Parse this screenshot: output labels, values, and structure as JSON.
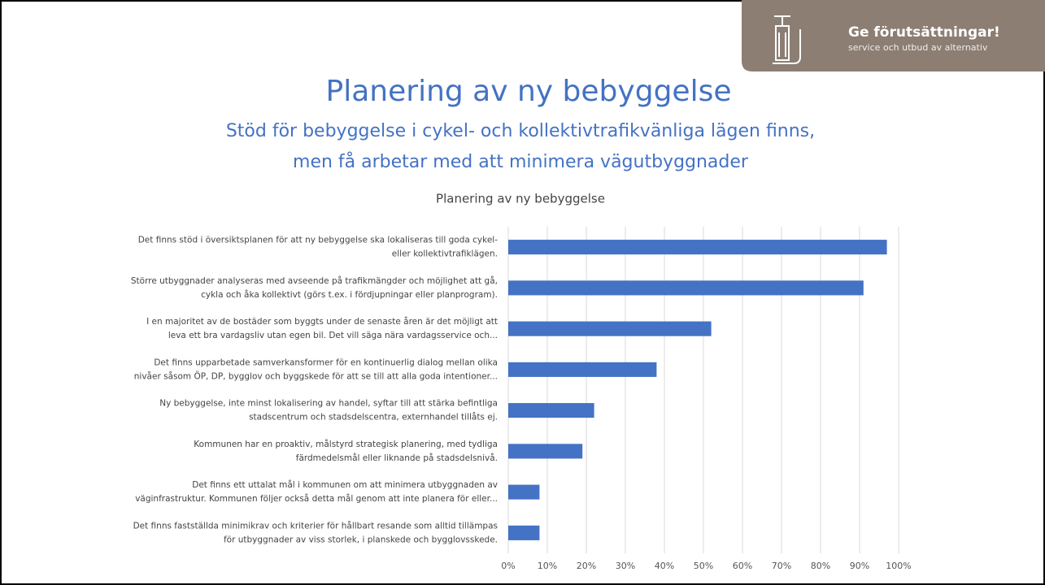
{
  "slide": {
    "badge_title": "Ge förutsättningar!",
    "badge_subtitle": "service och utbud av alternativ",
    "title": "Planering av ny bebyggelse",
    "subtitle": [
      "Stöd för bebyggelse i cykel- och kollektivtrafikvänliga lägen finns,",
      "men få arbetar med att minimera vägutbyggnader"
    ]
  },
  "chart_data": {
    "type": "barh",
    "title": "Planering av ny bebyggelse",
    "categories": [
      [
        "Det finns stöd i översiktsplanen för att ny bebyggelse ska lokaliseras till goda cykel-",
        "eller kollektivtrafiklägen."
      ],
      [
        "Större utbyggnader analyseras med avseende på trafikmängder och möjlighet att gå,",
        "cykla och åka kollektivt (görs t.ex. i fördjupningar eller planprogram)."
      ],
      [
        "I en majoritet av de bostäder som byggts under de senaste åren är det möjligt att",
        "leva ett bra vardagsliv utan egen bil. Det vill säga nära vardagsservice och..."
      ],
      [
        "Det finns upparbetade samverkansformer för en kontinuerlig dialog mellan olika",
        "nivåer såsom ÖP, DP, bygglov och byggskede för att se till att alla goda intentioner..."
      ],
      [
        "Ny bebyggelse, inte minst lokalisering av handel, syftar till att stärka befintliga",
        "stadscentrum och stadsdelscentra, externhandel tillåts ej."
      ],
      [
        "Kommunen har en proaktiv, målstyrd strategisk planering, med tydliga",
        "färdmedelsmål eller liknande på stadsdelsnivå."
      ],
      [
        "Det finns ett uttalat mål i kommunen om att minimera utbyggnaden av",
        "väginfrastruktur. Kommunen följer också detta mål genom att inte planera för eller..."
      ],
      [
        "Det finns fastställda minimikrav och kriterier för hållbart resande som alltid tillämpas",
        "för utbyggnader av viss storlek, i planskede och bygglovsskede."
      ]
    ],
    "values": [
      97,
      91,
      52,
      38,
      22,
      19,
      8,
      8
    ],
    "color": "#4472c4",
    "xlim": [
      0,
      100
    ],
    "xticks": [
      {
        "value": 0,
        "label": "0%"
      },
      {
        "value": 10,
        "label": "10%"
      },
      {
        "value": 20,
        "label": "20%"
      },
      {
        "value": 30,
        "label": "30%"
      },
      {
        "value": 40,
        "label": "40%"
      },
      {
        "value": 50,
        "label": "50%"
      },
      {
        "value": 60,
        "label": "60%"
      },
      {
        "value": 70,
        "label": "70%"
      },
      {
        "value": 80,
        "label": "80%"
      },
      {
        "value": 90,
        "label": "90%"
      },
      {
        "value": 100,
        "label": "100%"
      }
    ],
    "grid": true
  }
}
